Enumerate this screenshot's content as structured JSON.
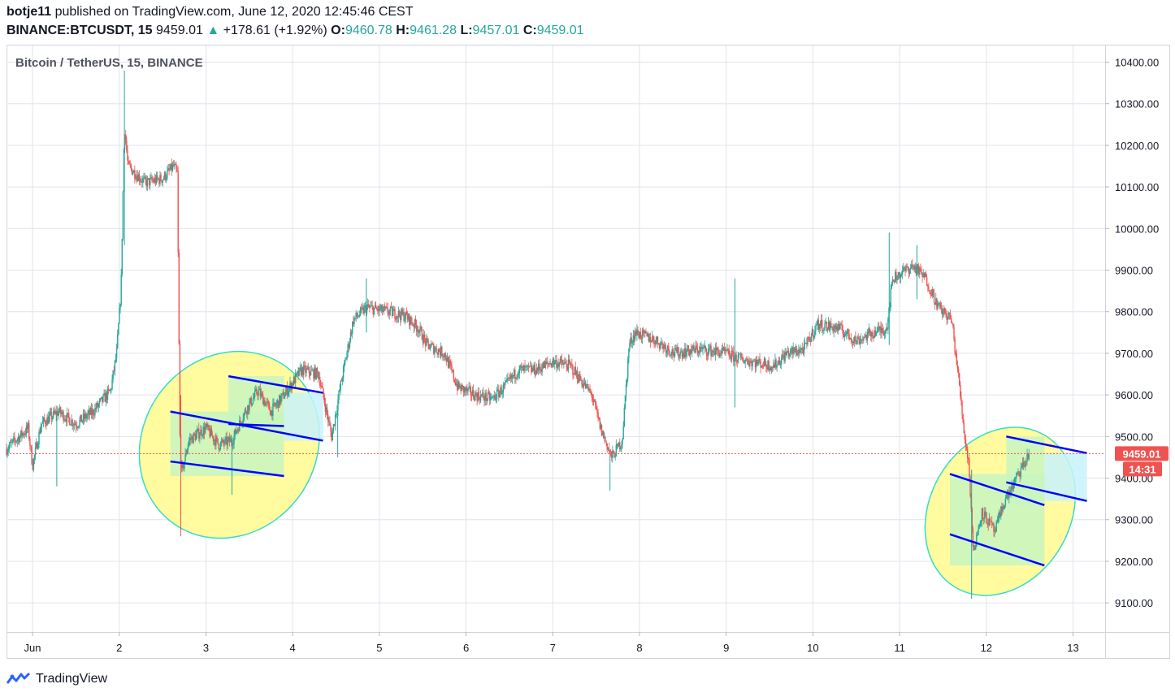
{
  "header": {
    "publisher": "botje11",
    "published_text": "published on TradingView.com, June 12, 2020 12:45:46 CEST",
    "symbol": "BINANCE:BTCUSDT, 15",
    "last": "9459.01",
    "change": "+178.61 (+1.92%)",
    "o_label": "O:",
    "o_value": "9460.78",
    "h_label": "H:",
    "h_value": "9461.28",
    "l_label": "L:",
    "l_value": "9457.01",
    "c_label": "C:",
    "c_value": "9459.01"
  },
  "chart_data": {
    "type": "candlestick",
    "title": "Bitcoin / TetherUS, 15, BINANCE",
    "ylim": [
      9030,
      10440
    ],
    "y_ticks": [
      9100,
      9200,
      9300,
      9400,
      9500,
      9600,
      9700,
      9800,
      9900,
      10000,
      10100,
      10200,
      10300,
      10400
    ],
    "y_tick_labels": [
      "9100.00",
      "9200.00",
      "9300.00",
      "9400.00",
      "9500.00",
      "9600.00",
      "9700.00",
      "9800.00",
      "9900.00",
      "10000.00",
      "10100.00",
      "10200.00",
      "10300.00",
      "10400.00"
    ],
    "x_ticks": [
      1,
      2,
      3,
      4,
      5,
      6,
      7,
      8,
      9,
      10,
      11,
      12,
      13
    ],
    "x_tick_labels": [
      "Jun",
      "2",
      "3",
      "4",
      "5",
      "6",
      "7",
      "8",
      "9",
      "10",
      "11",
      "12",
      "13"
    ],
    "xlim": [
      0.7,
      13.37
    ],
    "price_path": [
      [
        0.7,
        9470
      ],
      [
        0.95,
        9520
      ],
      [
        1.0,
        9430
      ],
      [
        1.1,
        9530
      ],
      [
        1.3,
        9560
      ],
      [
        1.5,
        9530
      ],
      [
        1.7,
        9560
      ],
      [
        1.9,
        9610
      ],
      [
        1.97,
        9700
      ],
      [
        2.02,
        9850
      ],
      [
        2.06,
        10250
      ],
      [
        2.1,
        10150
      ],
      [
        2.3,
        10110
      ],
      [
        2.5,
        10120
      ],
      [
        2.63,
        10150
      ],
      [
        2.67,
        10130
      ],
      [
        2.7,
        9500
      ],
      [
        2.72,
        9410
      ],
      [
        2.8,
        9490
      ],
      [
        3.0,
        9520
      ],
      [
        3.15,
        9480
      ],
      [
        3.3,
        9490
      ],
      [
        3.45,
        9560
      ],
      [
        3.6,
        9610
      ],
      [
        3.75,
        9560
      ],
      [
        3.9,
        9600
      ],
      [
        4.1,
        9660
      ],
      [
        4.3,
        9650
      ],
      [
        4.45,
        9500
      ],
      [
        4.55,
        9620
      ],
      [
        4.7,
        9780
      ],
      [
        4.85,
        9810
      ],
      [
        5.1,
        9800
      ],
      [
        5.3,
        9790
      ],
      [
        5.45,
        9760
      ],
      [
        5.55,
        9720
      ],
      [
        5.75,
        9700
      ],
      [
        5.9,
        9620
      ],
      [
        6.1,
        9600
      ],
      [
        6.3,
        9590
      ],
      [
        6.45,
        9620
      ],
      [
        6.6,
        9660
      ],
      [
        6.8,
        9660
      ],
      [
        7.0,
        9680
      ],
      [
        7.2,
        9670
      ],
      [
        7.45,
        9600
      ],
      [
        7.55,
        9520
      ],
      [
        7.68,
        9450
      ],
      [
        7.8,
        9490
      ],
      [
        7.88,
        9720
      ],
      [
        7.95,
        9750
      ],
      [
        8.2,
        9730
      ],
      [
        8.4,
        9700
      ],
      [
        8.7,
        9710
      ],
      [
        9.0,
        9700
      ],
      [
        9.1,
        9690
      ],
      [
        9.3,
        9680
      ],
      [
        9.55,
        9670
      ],
      [
        9.7,
        9700
      ],
      [
        9.9,
        9710
      ],
      [
        10.05,
        9770
      ],
      [
        10.3,
        9760
      ],
      [
        10.5,
        9730
      ],
      [
        10.7,
        9750
      ],
      [
        10.85,
        9760
      ],
      [
        10.92,
        9880
      ],
      [
        11.15,
        9910
      ],
      [
        11.3,
        9880
      ],
      [
        11.45,
        9810
      ],
      [
        11.6,
        9780
      ],
      [
        11.68,
        9640
      ],
      [
        11.75,
        9500
      ],
      [
        11.8,
        9430
      ],
      [
        11.85,
        9220
      ],
      [
        11.95,
        9320
      ],
      [
        12.1,
        9270
      ],
      [
        12.2,
        9340
      ],
      [
        12.3,
        9380
      ],
      [
        12.4,
        9420
      ],
      [
        12.5,
        9460
      ]
    ],
    "wicks": [
      [
        2.06,
        9960,
        10380
      ],
      [
        2.71,
        9260,
        9600
      ],
      [
        1.28,
        9380,
        9560
      ],
      [
        3.3,
        9360,
        9500
      ],
      [
        4.52,
        9450,
        9560
      ],
      [
        7.66,
        9370,
        9460
      ],
      [
        9.1,
        9570,
        9880
      ],
      [
        10.88,
        9720,
        9990
      ],
      [
        11.83,
        9110,
        9420
      ],
      [
        11.2,
        9830,
        9960
      ],
      [
        4.85,
        9750,
        9880
      ]
    ],
    "last_price": 9459.01,
    "last_price_label": "9459.01",
    "countdown_label": "14:31",
    "colors": {
      "up": "#26a69a",
      "down": "#ef5350",
      "grid": "#e0e3eb",
      "channel": "#0000ff",
      "ellipse_fill": "#fffb9e",
      "ellipse_stroke": "#33ddcc",
      "box_green": "#c8f5c0",
      "box_cyan": "#c8f2fa",
      "price_line": "#ef5350"
    },
    "annotations": {
      "ellipses": [
        {
          "cx": 3.27,
          "cy": 9480,
          "rx_days": 1.0,
          "ry_price": 232,
          "rotate": 35
        },
        {
          "cx": 12.16,
          "cy": 9320,
          "rx_days": 0.81,
          "ry_price": 212,
          "rotate": 30
        }
      ],
      "channels": [
        {
          "x1": 2.59,
          "y1": 9560,
          "x2": 4.35,
          "y2": 9490
        },
        {
          "x1": 2.59,
          "y1": 9440,
          "x2": 3.9,
          "y2": 9405
        },
        {
          "x1": 3.26,
          "y1": 9645,
          "x2": 4.35,
          "y2": 9605
        },
        {
          "x1": 3.26,
          "y1": 9530,
          "x2": 3.9,
          "y2": 9525
        },
        {
          "x1": 11.58,
          "y1": 9410,
          "x2": 12.67,
          "y2": 9335
        },
        {
          "x1": 11.58,
          "y1": 9265,
          "x2": 12.67,
          "y2": 9190
        },
        {
          "x1": 12.23,
          "y1": 9500,
          "x2": 13.16,
          "y2": 9460
        },
        {
          "x1": 12.23,
          "y1": 9390,
          "x2": 13.16,
          "y2": 9345
        }
      ],
      "boxes": [
        {
          "x1": 2.59,
          "x2": 3.9,
          "y1": 9405,
          "y2": 9560,
          "kind": "green"
        },
        {
          "x1": 3.26,
          "x2": 3.9,
          "y1": 9525,
          "y2": 9645,
          "kind": "green"
        },
        {
          "x1": 3.9,
          "x2": 4.35,
          "y1": 9490,
          "y2": 9605,
          "kind": "cyan"
        },
        {
          "x1": 11.58,
          "x2": 12.67,
          "y1": 9190,
          "y2": 9410,
          "kind": "green"
        },
        {
          "x1": 12.23,
          "x2": 12.67,
          "y1": 9335,
          "y2": 9500,
          "kind": "green"
        },
        {
          "x1": 12.67,
          "x2": 13.16,
          "y1": 9345,
          "y2": 9460,
          "kind": "cyan"
        }
      ]
    }
  },
  "footer": {
    "brand": "TradingView"
  }
}
